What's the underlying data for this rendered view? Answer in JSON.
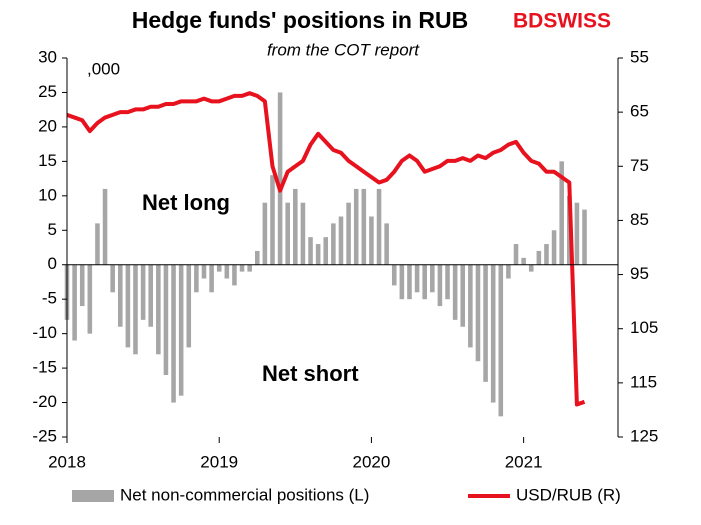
{
  "chart_data": {
    "type": "bar-line",
    "title": "Hedge funds' positions in RUB",
    "subtitle": "from the COT report",
    "logo": "BDSWISS",
    "unit_label": ",000",
    "annotations": [
      "Net long",
      "Net short"
    ],
    "x": [
      2018.0,
      2018.05,
      2018.1,
      2018.15,
      2018.2,
      2018.25,
      2018.3,
      2018.35,
      2018.4,
      2018.45,
      2018.5,
      2018.55,
      2018.6,
      2018.65,
      2018.7,
      2018.75,
      2018.8,
      2018.85,
      2018.9,
      2018.95,
      2019.0,
      2019.05,
      2019.1,
      2019.15,
      2019.2,
      2019.25,
      2019.3,
      2019.35,
      2019.4,
      2019.45,
      2019.5,
      2019.55,
      2019.6,
      2019.65,
      2019.7,
      2019.75,
      2019.8,
      2019.85,
      2019.9,
      2019.95,
      2020.0,
      2020.05,
      2020.1,
      2020.15,
      2020.2,
      2020.25,
      2020.3,
      2020.35,
      2020.4,
      2020.45,
      2020.5,
      2020.55,
      2020.6,
      2020.65,
      2020.7,
      2020.75,
      2020.8,
      2020.85,
      2020.9,
      2020.95,
      2021.0,
      2021.05,
      2021.1,
      2021.15,
      2021.2,
      2021.25,
      2021.3,
      2021.35,
      2021.4
    ],
    "series": [
      {
        "name": "Net non-commercial positions (L)",
        "type": "bar",
        "color": "#a6a6a6",
        "axis": "y",
        "values": [
          -8,
          -11,
          -6,
          -10,
          6,
          11,
          -4,
          -9,
          -12,
          -13,
          -8,
          -9,
          -13,
          -16,
          -20,
          -19,
          -12,
          -4,
          -2,
          -4,
          -1,
          -2,
          -3,
          -1,
          -1,
          2,
          9,
          13,
          25,
          9,
          11,
          9,
          4,
          3,
          4,
          6,
          7,
          9,
          11,
          11,
          7,
          11,
          6,
          -3,
          -5,
          -5,
          -4,
          -5,
          -4,
          -6,
          -5,
          -8,
          -9,
          -12,
          -14,
          -17,
          -20,
          -22,
          -2,
          3,
          1,
          -1,
          2,
          3,
          5,
          15,
          10,
          9,
          8
        ]
      },
      {
        "name": "USD/RUB (R)",
        "type": "line",
        "color": "#e8111e",
        "axis": "y2",
        "values": [
          65.5,
          66,
          66.5,
          68.5,
          67,
          66,
          65.5,
          65,
          65,
          64.5,
          64.5,
          64,
          64,
          63.5,
          63.5,
          63,
          63,
          63,
          62.5,
          63,
          63,
          62.5,
          62,
          62,
          61.5,
          62,
          63,
          75,
          79.5,
          76,
          75,
          74,
          71,
          69,
          70.5,
          72,
          72.5,
          74,
          75,
          76,
          77,
          78,
          77.5,
          76,
          74,
          73,
          74,
          76,
          75.5,
          75,
          74,
          74,
          73.5,
          74,
          73,
          73.5,
          72.5,
          72,
          71,
          70.5,
          72.5,
          74,
          74.5,
          76,
          76,
          77,
          78,
          119,
          118.5
        ]
      }
    ],
    "xlim": [
      2018,
      2021.62
    ],
    "xticks": [
      2018,
      2019,
      2020,
      2021
    ],
    "ylim": [
      -25,
      30
    ],
    "yticks": [
      -25,
      -20,
      -15,
      -10,
      -5,
      0,
      5,
      10,
      15,
      20,
      25,
      30
    ],
    "y2lim": [
      55,
      125
    ],
    "y2_reversed": true,
    "y2ticks": [
      55,
      65,
      75,
      85,
      95,
      105,
      115,
      125
    ]
  }
}
